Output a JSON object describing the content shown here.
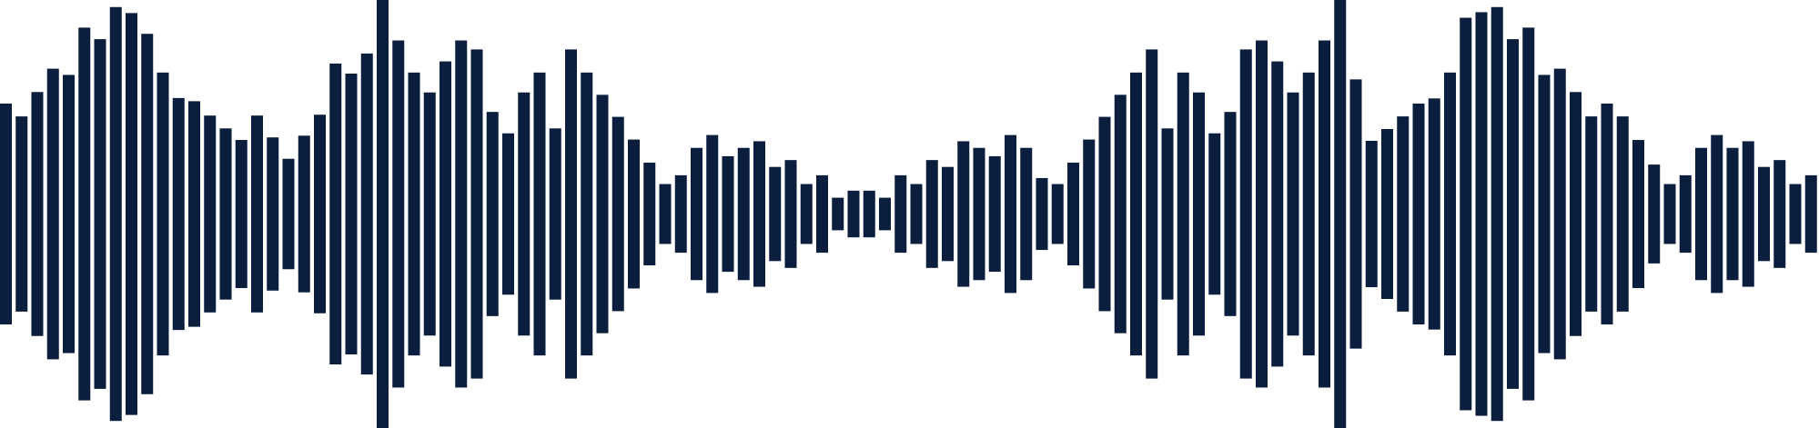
{
  "waveform": {
    "icon": "audio-waveform-icon",
    "bar_color": "#0b1e3d",
    "background": "#ffffff",
    "levels": [
      0.516,
      0.456,
      0.57,
      0.679,
      0.65,
      0.871,
      0.817,
      0.967,
      0.939,
      0.842,
      0.661,
      0.542,
      0.527,
      0.46,
      0.4,
      0.346,
      0.46,
      0.358,
      0.258,
      0.366,
      0.464,
      0.703,
      0.656,
      0.75,
      1.0,
      0.811,
      0.661,
      0.568,
      0.713,
      0.811,
      0.769,
      0.477,
      0.377,
      0.568,
      0.661,
      0.4,
      0.769,
      0.661,
      0.557,
      0.454,
      0.348,
      0.24,
      0.14,
      0.181,
      0.309,
      0.369,
      0.27,
      0.309,
      0.34,
      0.22,
      0.252,
      0.14,
      0.181,
      0.076,
      0.109,
      0.109,
      0.076,
      0.181,
      0.14,
      0.252,
      0.22,
      0.34,
      0.309,
      0.27,
      0.369,
      0.309,
      0.168,
      0.14,
      0.24,
      0.348,
      0.454,
      0.557,
      0.661,
      0.769,
      0.4,
      0.661,
      0.568,
      0.377,
      0.477,
      0.769,
      0.811,
      0.713,
      0.568,
      0.661,
      0.811,
      1.0,
      0.629,
      0.342,
      0.397,
      0.456,
      0.516,
      0.54,
      0.661,
      0.917,
      0.943,
      0.967,
      0.817,
      0.871,
      0.65,
      0.679,
      0.57,
      0.456,
      0.516,
      0.456,
      0.346,
      0.231,
      0.14,
      0.181,
      0.309,
      0.369,
      0.309,
      0.34,
      0.22,
      0.252,
      0.14,
      0.181
    ]
  }
}
